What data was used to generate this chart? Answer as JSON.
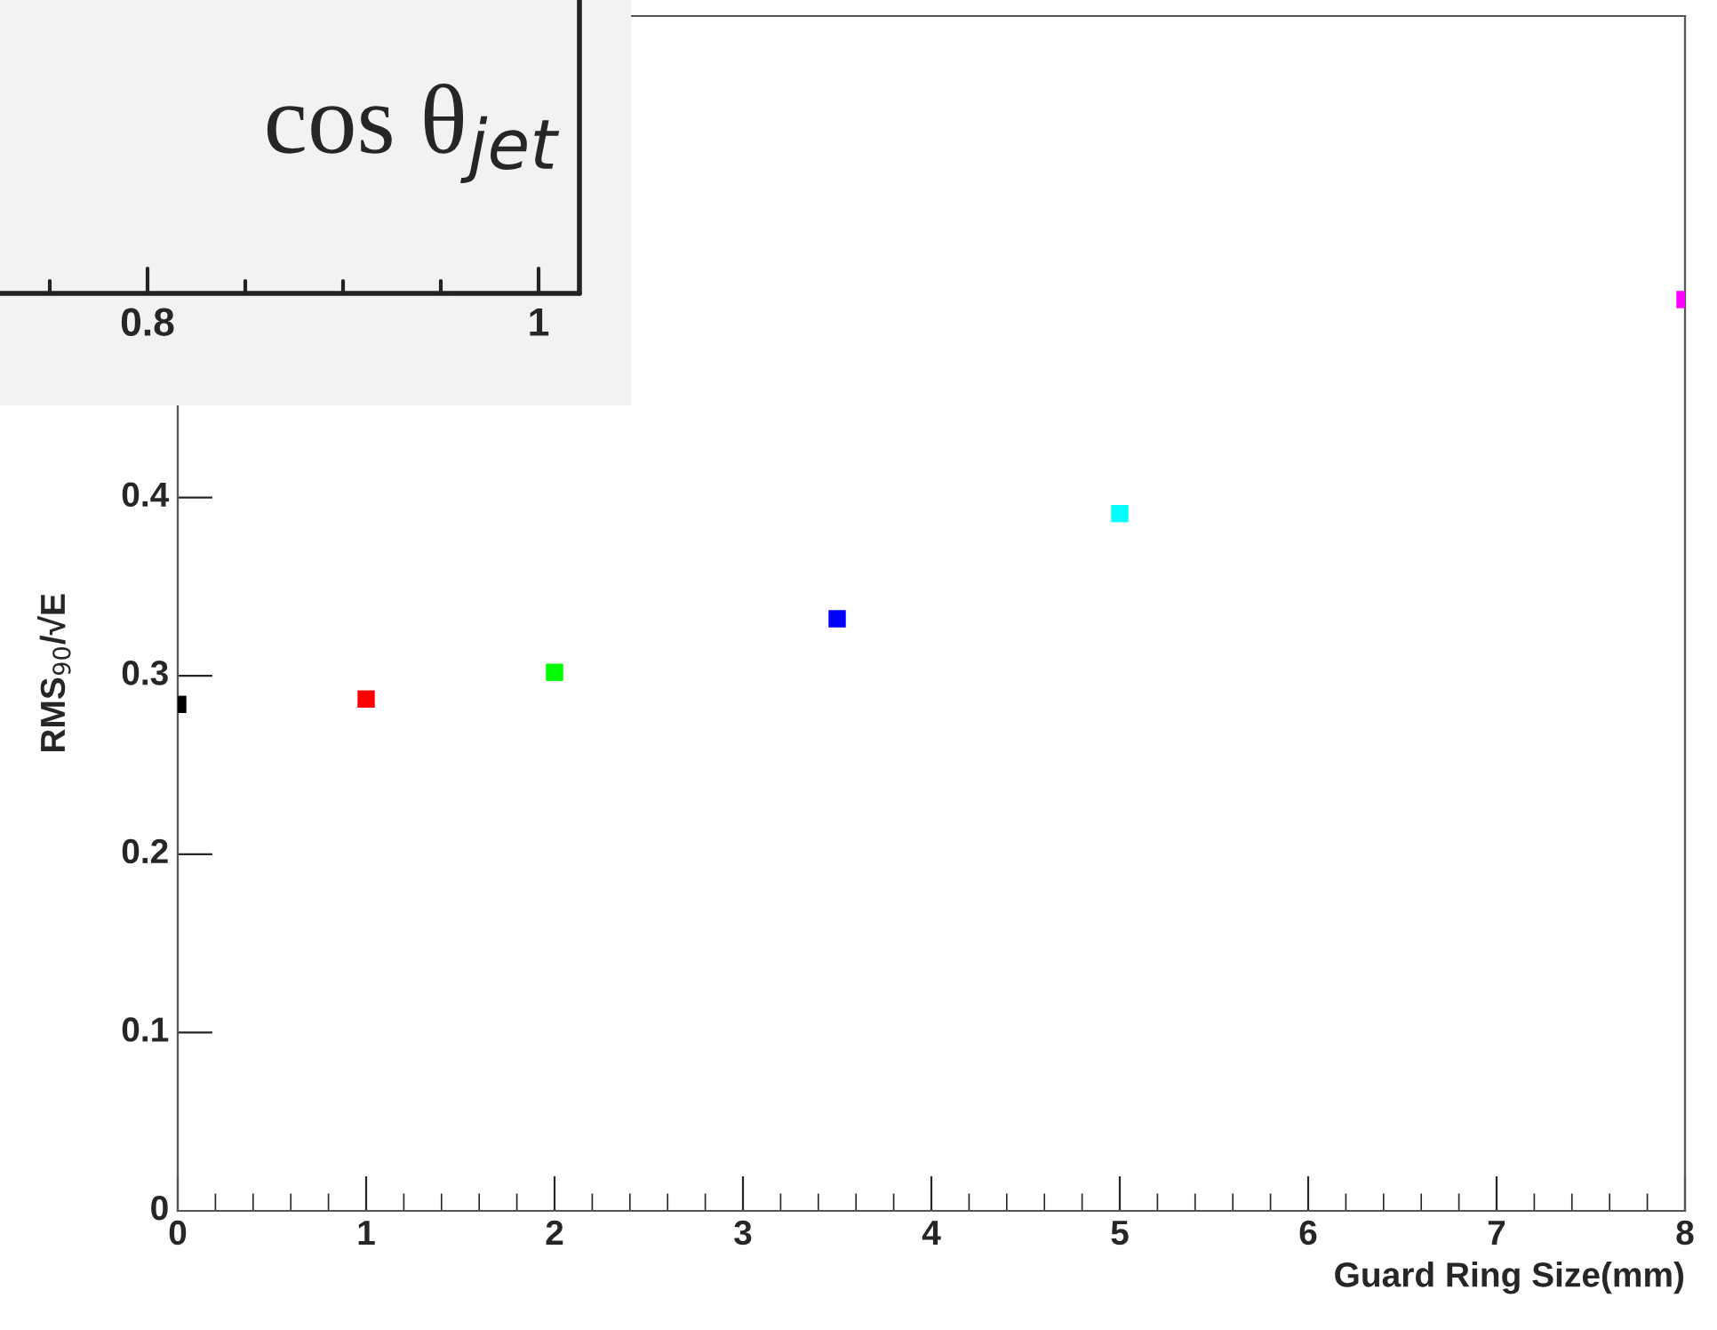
{
  "chart_data": {
    "type": "scatter",
    "xlabel": "Guard Ring Size(mm)",
    "ylabel": "RMS$_{90}$/√E",
    "x": [
      0,
      1,
      2,
      3.5,
      5,
      8
    ],
    "values": [
      0.284,
      0.287,
      0.302,
      0.332,
      0.391,
      0.511
    ],
    "colors": [
      "#000000",
      "#ff0000",
      "#00ff00",
      "#0000ff",
      "#00ffff",
      "#ff00ff"
    ],
    "marker": "square",
    "xlim": [
      0,
      8
    ],
    "ylim": [
      0,
      0.67
    ],
    "xticks": [
      0,
      1,
      2,
      3,
      4,
      5,
      6,
      7,
      8
    ],
    "yticks": [
      0,
      0.1,
      0.2,
      0.3,
      0.4
    ],
    "grid": false,
    "annotations": [
      "cos θ$_{jet}$",
      "0.8",
      "1"
    ]
  }
}
